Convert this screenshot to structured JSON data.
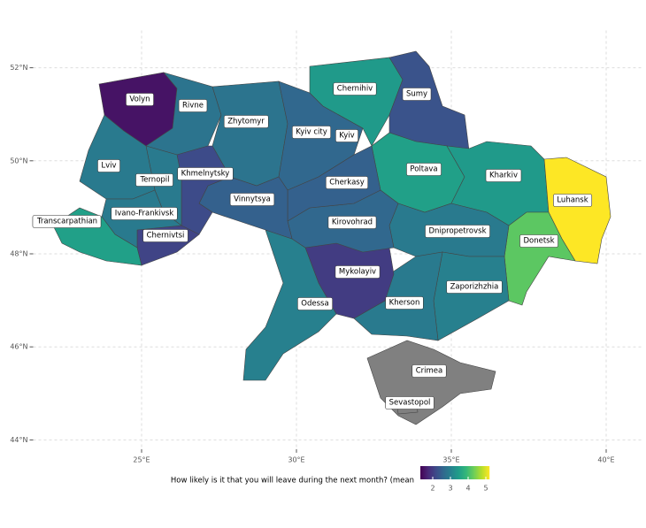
{
  "chart_data": {
    "type": "map",
    "legend_title": "How likely is it that you will leave during the next month? (mean",
    "regions": [
      {
        "name": "Volyn",
        "value": 1.5
      },
      {
        "name": "Rivne",
        "value": 2.8
      },
      {
        "name": "Zhytomyr",
        "value": 2.8
      },
      {
        "name": "Kyiv city",
        "value": 2.7
      },
      {
        "name": "Kyiv",
        "value": 2.6
      },
      {
        "name": "Chernihiv",
        "value": 3.4
      },
      {
        "name": "Sumy",
        "value": 2.3
      },
      {
        "name": "Poltava",
        "value": 3.5
      },
      {
        "name": "Kharkiv",
        "value": 3.4
      },
      {
        "name": "Luhansk",
        "value": 5.2
      },
      {
        "name": "Donetsk",
        "value": 4.2
      },
      {
        "name": "Dnipropetrovsk",
        "value": 2.9
      },
      {
        "name": "Zaporizhzhia",
        "value": 3.0
      },
      {
        "name": "Kherson",
        "value": 2.9
      },
      {
        "name": "Mykolayiv",
        "value": 2.0
      },
      {
        "name": "Odessa",
        "value": 3.0
      },
      {
        "name": "Kirovohrad",
        "value": 2.6
      },
      {
        "name": "Cherkasy",
        "value": 2.5
      },
      {
        "name": "Vinnytsya",
        "value": 2.5
      },
      {
        "name": "Khmelnytsky",
        "value": 2.2
      },
      {
        "name": "Chernivtsi",
        "value": 2.1
      },
      {
        "name": "Ternopil",
        "value": 2.9
      },
      {
        "name": "Lviv",
        "value": 2.9
      },
      {
        "name": "Ivano-Frankivsk",
        "value": 2.9
      },
      {
        "name": "Transcarpathian",
        "value": 3.5
      },
      {
        "name": "Crimea",
        "value": null
      },
      {
        "name": "Sevastopol",
        "value": null
      }
    ],
    "na_color": "#808080",
    "colorscale": [
      "#440154",
      "#482878",
      "#3e4989",
      "#31688e",
      "#26828e",
      "#1f9e89",
      "#35b779",
      "#6ece58",
      "#b5de2b",
      "#fde725"
    ],
    "clim": [
      1.3,
      5.2
    ],
    "cticks": [
      2,
      3,
      4,
      5
    ],
    "xlim": [
      21.5,
      41.2
    ],
    "xticks": [
      {
        "value": 25,
        "label": "25°E"
      },
      {
        "value": 30,
        "label": "30°E"
      },
      {
        "value": 35,
        "label": "35°E"
      },
      {
        "value": 40,
        "label": "40°E"
      }
    ],
    "ylim": [
      43.8,
      52.8
    ],
    "yticks": [
      {
        "value": 44,
        "label": "44°N"
      },
      {
        "value": 46,
        "label": "46°N"
      },
      {
        "value": 48,
        "label": "48°N"
      },
      {
        "value": 50,
        "label": "50°N"
      },
      {
        "value": 52,
        "label": "52°N"
      }
    ],
    "grid": true
  }
}
